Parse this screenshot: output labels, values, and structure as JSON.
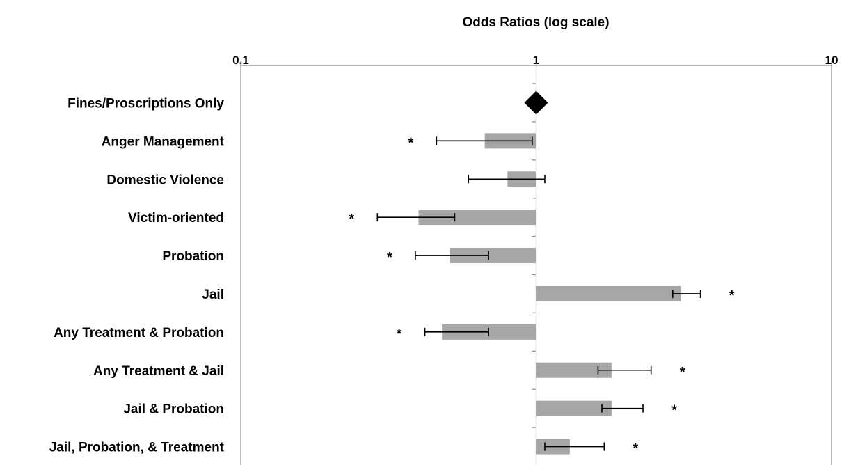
{
  "chart_data": {
    "type": "bar",
    "title": "Odds Ratios (log scale)",
    "xscale": "log",
    "xlim": [
      0.1,
      10
    ],
    "xticks": [
      "0.1",
      "1",
      "10"
    ],
    "reference_value": 1,
    "reference_category": "Fines/Proscriptions Only",
    "reference_marker": "diamond",
    "bar_color": "#a6a6a6",
    "categories": [
      "Fines/Proscriptions Only",
      "Anger Management",
      "Domestic Violence ",
      "Victim-oriented",
      "Probation",
      "Jail",
      "Any Treatment & Probation",
      "Any Treatment & Jail",
      "Jail & Probation",
      "Jail, Probation, & Treatment"
    ],
    "values": [
      1,
      0.67,
      0.8,
      0.4,
      0.51,
      3.1,
      0.48,
      1.8,
      1.8,
      1.3
    ],
    "ci_lower": [
      null,
      0.46,
      0.59,
      0.29,
      0.39,
      2.9,
      0.42,
      1.62,
      1.67,
      1.07
    ],
    "ci_upper": [
      null,
      0.97,
      1.07,
      0.53,
      0.69,
      3.6,
      0.69,
      2.45,
      2.3,
      1.7
    ],
    "significance": [
      "",
      "*",
      "",
      "*",
      "*",
      "*",
      "*",
      "*",
      "*",
      "*"
    ]
  }
}
